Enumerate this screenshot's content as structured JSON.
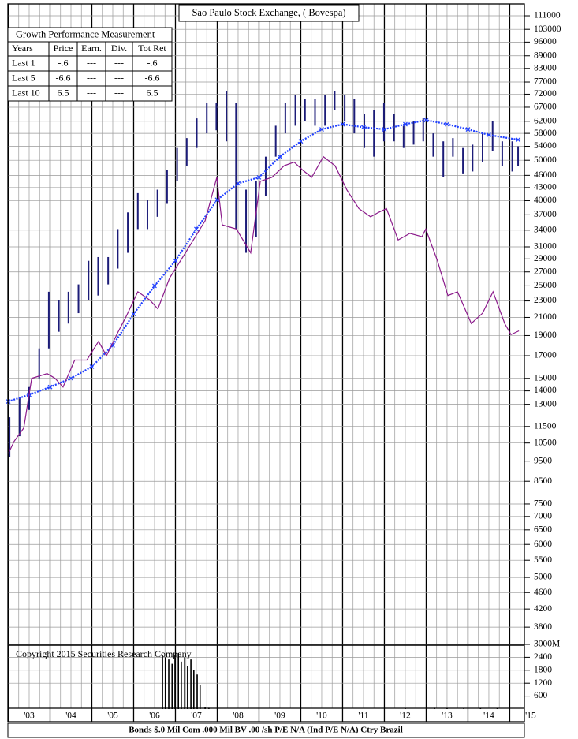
{
  "chart_data": [
    {
      "type": "hilo",
      "title": "Sao Paulo Stock Exchange, ( Bovespa)",
      "log_y": true,
      "grid": true,
      "xlim": [
        2003,
        2015.35
      ],
      "xticks": [
        {
          "value": 2003,
          "label": "'03"
        },
        {
          "value": 2004,
          "label": "'04"
        },
        {
          "value": 2005,
          "label": "'05"
        },
        {
          "value": 2006,
          "label": "'06"
        },
        {
          "value": 2007,
          "label": "'07"
        },
        {
          "value": 2008,
          "label": "'08"
        },
        {
          "value": 2009,
          "label": "'09"
        },
        {
          "value": 2010,
          "label": "'10"
        },
        {
          "value": 2011,
          "label": "'11"
        },
        {
          "value": 2012,
          "label": "'12"
        },
        {
          "value": 2013,
          "label": "'13"
        },
        {
          "value": 2014,
          "label": "'14"
        },
        {
          "value": 2015,
          "label": "'15"
        }
      ],
      "ylim": [
        3440,
        118500
      ],
      "yticks": [
        111000,
        103000,
        96000,
        89000,
        83000,
        77000,
        72000,
        67000,
        62000,
        58000,
        54000,
        50000,
        46000,
        43000,
        40000,
        37000,
        34000,
        31000,
        29000,
        27000,
        25000,
        23000,
        21000,
        19000,
        17000,
        15000,
        14000,
        13000,
        11500,
        10500,
        9500,
        8500,
        7500,
        7000,
        6500,
        6000,
        5500,
        5000,
        4600,
        4200,
        3800
      ],
      "series": [
        {
          "type": "hilo",
          "color": "#1c1c78",
          "x": [
            2003.03,
            2003.27,
            2003.5,
            2003.74,
            2003.97,
            2004.21,
            2004.44,
            2004.68,
            2004.92,
            2005.15,
            2005.39,
            2005.62,
            2005.86,
            2006.1,
            2006.33,
            2006.57,
            2006.8,
            2007.04,
            2007.27,
            2007.51,
            2007.75,
            2007.98,
            2008.22,
            2008.45,
            2008.69,
            2008.93,
            2009.16,
            2009.4,
            2009.63,
            2009.87,
            2010.1,
            2010.34,
            2010.58,
            2010.81,
            2011.05,
            2011.28,
            2011.52,
            2011.75,
            2011.99,
            2012.23,
            2012.46,
            2012.7,
            2012.93,
            2013.17,
            2013.41,
            2013.64,
            2013.88,
            2014.11,
            2014.35,
            2014.59,
            2014.82,
            2015.06,
            2015.2
          ],
          "high": [
            12100,
            13500,
            14300,
            17700,
            24200,
            23100,
            24200,
            25200,
            28700,
            29300,
            29300,
            34200,
            37500,
            41700,
            40200,
            42500,
            47500,
            53500,
            56500,
            63000,
            68500,
            68500,
            73200,
            68500,
            42500,
            44500,
            51000,
            60500,
            68500,
            71700,
            70000,
            70000,
            71700,
            73200,
            71700,
            70000,
            64500,
            66000,
            68500,
            64500,
            60500,
            62000,
            63000,
            58000,
            55500,
            56500,
            53500,
            54500,
            58000,
            62000,
            55500,
            55500,
            54000
          ],
          "low": [
            9700,
            10900,
            12600,
            15000,
            17700,
            19400,
            20300,
            21500,
            23100,
            23700,
            25200,
            27500,
            30000,
            34200,
            34200,
            36600,
            39300,
            44500,
            48500,
            53500,
            58000,
            59000,
            55500,
            34200,
            30000,
            32800,
            41000,
            51000,
            58000,
            60500,
            62000,
            60500,
            60500,
            66000,
            62000,
            58000,
            53500,
            51000,
            55500,
            55500,
            53500,
            54500,
            55500,
            51000,
            45500,
            51000,
            46500,
            47000,
            49500,
            52500,
            48500,
            47000,
            48500
          ]
        },
        {
          "type": "marker_line",
          "color": "#1f3fff",
          "x": [
            2003,
            2003.5,
            2004,
            2004.5,
            2005,
            2005.5,
            2006,
            2006.5,
            2007,
            2007.5,
            2008,
            2008.5,
            2009,
            2009.5,
            2010,
            2010.5,
            2011,
            2011.5,
            2012,
            2012.5,
            2013,
            2013.5,
            2014,
            2014.5,
            2015.2
          ],
          "values": [
            13200,
            13700,
            14300,
            15000,
            16000,
            18000,
            21400,
            25000,
            28700,
            34200,
            40200,
            44000,
            45500,
            51000,
            55500,
            59300,
            61000,
            60000,
            59300,
            61000,
            62400,
            61000,
            59300,
            57500,
            56000
          ]
        },
        {
          "type": "line",
          "color": "#8b1a8b",
          "x": [
            2003,
            2003.14,
            2003.37,
            2003.56,
            2003.93,
            2004.12,
            2004.31,
            2004.59,
            2004.88,
            2005.16,
            2005.35,
            2005.63,
            2005.82,
            2006.1,
            2006.39,
            2006.58,
            2006.86,
            2007.24,
            2007.71,
            2007.99,
            2008.12,
            2008.46,
            2008.8,
            2009.03,
            2009.31,
            2009.6,
            2009.84,
            2010.03,
            2010.26,
            2010.54,
            2010.82,
            2011.1,
            2011.39,
            2011.67,
            2011.86,
            2012.05,
            2012.33,
            2012.61,
            2012.9,
            2012.99,
            2013.27,
            2013.52,
            2013.75,
            2014.08,
            2014.35,
            2014.6,
            2014.88,
            2015.03,
            2015.22
          ],
          "values": [
            9900,
            10600,
            11400,
            15000,
            15400,
            15000,
            14300,
            16600,
            16600,
            18400,
            17000,
            19400,
            21100,
            24200,
            23100,
            22000,
            26100,
            30000,
            35800,
            45500,
            35000,
            34200,
            30000,
            44500,
            45500,
            48500,
            49500,
            47500,
            45500,
            51000,
            48500,
            42500,
            38300,
            36600,
            37500,
            38300,
            32200,
            33400,
            32800,
            34200,
            28700,
            23700,
            24200,
            20300,
            21500,
            24200,
            20300,
            19100,
            19500
          ]
        }
      ]
    },
    {
      "type": "bar",
      "xlim": [
        2003,
        2015.35
      ],
      "ylim": [
        0,
        3000
      ],
      "yticks": [
        600,
        1200,
        1800,
        2400,
        {
          "value": 3000,
          "label": "3000M"
        }
      ],
      "color": "#000000",
      "x": [
        2006.69,
        2006.76,
        2006.84,
        2006.92,
        2006.99,
        2007.07,
        2007.14,
        2007.22,
        2007.29,
        2007.37,
        2007.44,
        2007.52,
        2007.59,
        2007.71,
        2007.8,
        2012.5,
        2013.2,
        2013.5,
        2013.9,
        2014.3,
        2014.7
      ],
      "values": [
        2500,
        2400,
        2300,
        2100,
        2500,
        2600,
        2200,
        2400,
        2000,
        2300,
        1800,
        1600,
        1100,
        100,
        60,
        40,
        60,
        50,
        40,
        50,
        40
      ]
    }
  ],
  "growth_table": {
    "title": "Growth Performance Measurement",
    "columns": [
      "Years",
      "Price",
      "Earn.",
      "Div.",
      "Tot Ret"
    ],
    "rows": [
      [
        "Last 1",
        "-.6",
        "---",
        "---",
        "-.6"
      ],
      [
        "Last 5",
        "-6.6",
        "---",
        "---",
        "-6.6"
      ],
      [
        "Last 10",
        "6.5",
        "---",
        "---",
        "6.5"
      ]
    ]
  },
  "copyright": "Copyright 2015 Securities Research Company",
  "footer": "Bonds  $.0 Mil Com .000 Mil BV .00 /sh  P/E N/A (Ind  P/E N/A) Ctry Brazil"
}
